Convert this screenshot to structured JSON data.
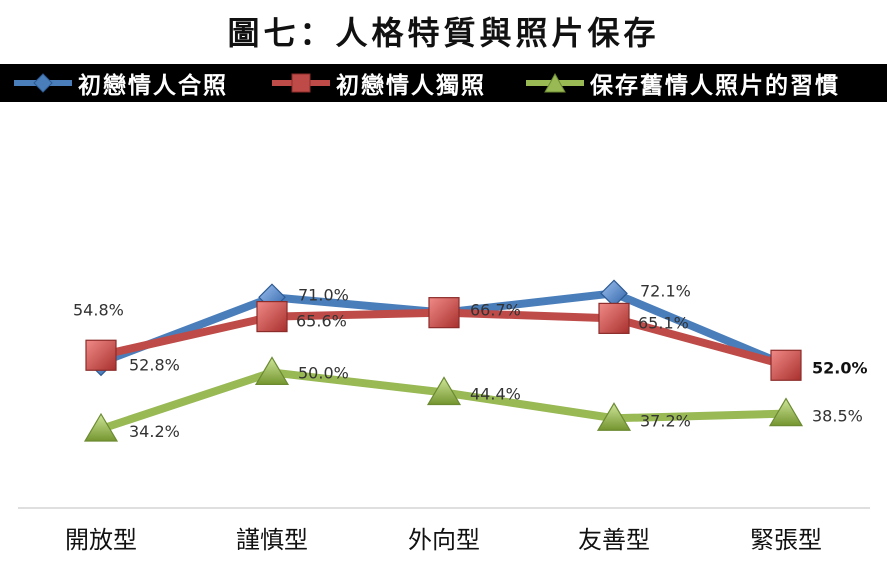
{
  "chart_data": {
    "type": "line",
    "title": "圖七：人格特質與照片保存",
    "categories": [
      "開放型",
      "謹慎型",
      "外向型",
      "友善型",
      "緊張型"
    ],
    "series": [
      {
        "name": "初戀情人合照",
        "values": [
          52.8,
          71.0,
          66.7,
          72.1,
          52.0
        ],
        "labels": [
          "52.8%",
          "71.0%",
          "",
          "72.1%",
          ""
        ],
        "color": "#4a7ebb",
        "marker": "diamond"
      },
      {
        "name": "初戀情人獨照",
        "values": [
          54.8,
          65.6,
          66.7,
          65.1,
          52.0
        ],
        "labels": [
          "54.8%",
          "65.6%",
          "66.7%",
          "65.1%",
          "52.0%"
        ],
        "color": "#be4b48",
        "marker": "square"
      },
      {
        "name": "保存舊情人照片的習慣",
        "values": [
          34.2,
          50.0,
          44.4,
          37.2,
          38.5
        ],
        "labels": [
          "34.2%",
          "50.0%",
          "44.4%",
          "37.2%",
          "38.5%"
        ],
        "color": "#98b954",
        "marker": "triangle"
      }
    ],
    "legend_position": "top",
    "grid": false
  }
}
